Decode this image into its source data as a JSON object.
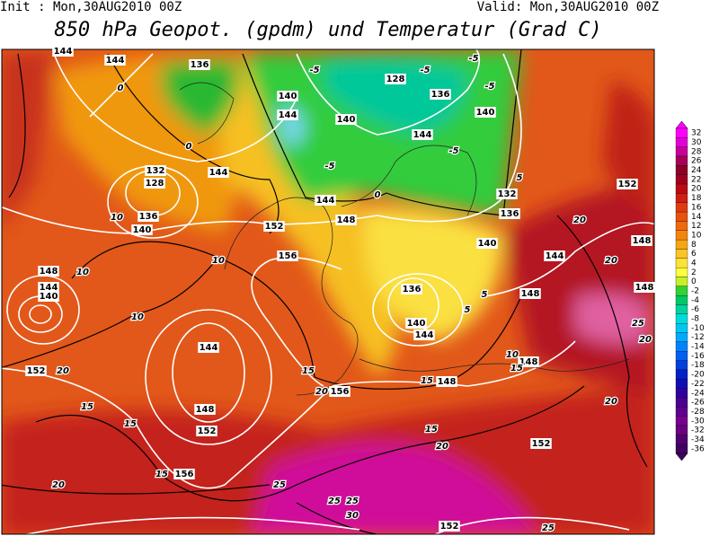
{
  "header": {
    "init": "Init : Mon,30AUG2010 00Z",
    "valid": "Valid: Mon,30AUG2010 00Z",
    "title": "850 hPa Geopot. (gpdm) und Temperatur (Grad C)"
  },
  "colorbar": {
    "levels": [
      32,
      30,
      28,
      26,
      24,
      22,
      20,
      18,
      16,
      14,
      12,
      10,
      8,
      6,
      4,
      2,
      0,
      -2,
      -4,
      -6,
      -8,
      -10,
      -12,
      -14,
      -16,
      -18,
      -20,
      -22,
      -24,
      -26,
      -28,
      -30,
      -32,
      -34,
      -36
    ],
    "colors": [
      "#ff00ff",
      "#e400d8",
      "#c8009a",
      "#a8005a",
      "#8c0028",
      "#a0001e",
      "#bc0a14",
      "#d01e14",
      "#de3c10",
      "#e8520c",
      "#f06a0a",
      "#f5840a",
      "#f8a414",
      "#fac424",
      "#fce234",
      "#ffff40",
      "#c8f028",
      "#32d232",
      "#00c864",
      "#00d2a0",
      "#00dcdc",
      "#00c8f0",
      "#00aaff",
      "#0082ff",
      "#0060f0",
      "#0040e0",
      "#0020c8",
      "#1010b0",
      "#3000a0",
      "#4a0090",
      "#600090",
      "#780090",
      "#6a0080",
      "#500070",
      "#400060"
    ]
  },
  "geopotential_labels": [
    144,
    144,
    136,
    140,
    128,
    136,
    140,
    144,
    140,
    144,
    132,
    128,
    136,
    140,
    144,
    152,
    148,
    156,
    136,
    140,
    144,
    148,
    148,
    144,
    140,
    152,
    144,
    148,
    152,
    156,
    156,
    148,
    148,
    152,
    152,
    148,
    148,
    140,
    144,
    132,
    136,
    152,
    144
  ],
  "temperature_labels": [
    -5,
    -5,
    -5,
    -5,
    0,
    0,
    -5,
    -5,
    0,
    10,
    10,
    10,
    10,
    15,
    20,
    15,
    15,
    20,
    15,
    20,
    25,
    25,
    25,
    30,
    20,
    20,
    20,
    20,
    25,
    15,
    5,
    5,
    10,
    15,
    20,
    15,
    5,
    25
  ]
}
